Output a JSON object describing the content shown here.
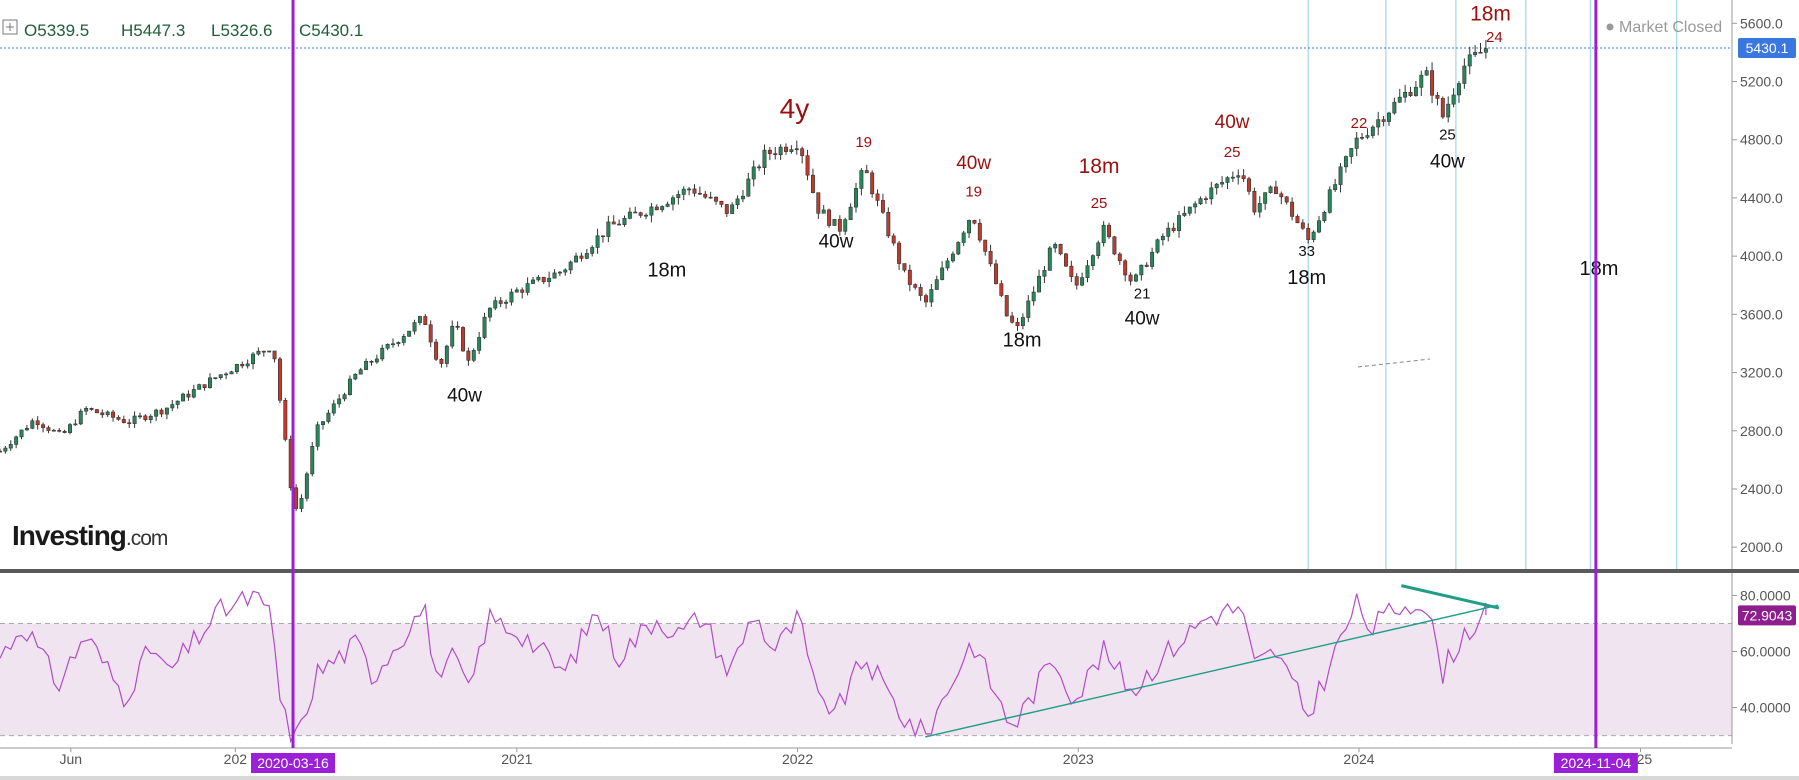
{
  "header": {
    "open_label": "O",
    "open": "5339.5",
    "high_label": "H",
    "high": "5447.3",
    "low_label": "L",
    "low": "5326.6",
    "close_label": "C",
    "close": "5430.1",
    "market_status": "Market Closed"
  },
  "branding": {
    "logo_main": "Investing",
    "logo_suffix": ".com"
  },
  "colors": {
    "up": "#26875a",
    "down": "#c0392b",
    "cycle_major": "#9b1fd6",
    "cycle_minor": "#a9d7e8",
    "rsi_line": "#b24bc7",
    "rsi_band": "#f1e4f1",
    "trendline": "#1e9e86",
    "price_badge": "#3a78e0",
    "rsi_badge": "#8e1e8e",
    "annotation_red": "#9b0f0f"
  },
  "chart_data": [
    {
      "type": "candlestick",
      "title": "",
      "y_axis": {
        "range": [
          1850,
          5760
        ],
        "ticks": [
          "2000.0",
          "2400.0",
          "2800.0",
          "3200.0",
          "3600.0",
          "4000.0",
          "4400.0",
          "4800.0",
          "5200.0",
          "5600.0"
        ],
        "last_price_label": "5430.1"
      },
      "x_axis": {
        "range": [
          "2019-03-01",
          "2025-04-30"
        ],
        "labels": [
          {
            "date": "2019-06-01",
            "text": "Jun"
          },
          {
            "date": "2020-01-01",
            "text": "202"
          },
          {
            "date": "2021-01-01",
            "text": "2021"
          },
          {
            "date": "2022-01-01",
            "text": "2022"
          },
          {
            "date": "2023-01-01",
            "text": "2023"
          },
          {
            "date": "2024-01-01",
            "text": "2024"
          },
          {
            "date": "2025-01-01",
            "text": "025"
          }
        ],
        "highlighted_dates": [
          {
            "date": "2020-03-16",
            "text": "2020-03-16"
          },
          {
            "date": "2024-11-04",
            "text": "2024-11-04"
          }
        ]
      },
      "price_path": [
        [
          "2019-03-01",
          2660
        ],
        [
          "2019-04-15",
          2880
        ],
        [
          "2019-05-20",
          2760
        ],
        [
          "2019-06-20",
          2950
        ],
        [
          "2019-08-15",
          2860
        ],
        [
          "2019-10-01",
          2950
        ],
        [
          "2019-12-01",
          3150
        ],
        [
          "2020-02-19",
          3390
        ],
        [
          "2020-03-16",
          2300
        ],
        [
          "2020-03-23",
          2240
        ],
        [
          "2020-04-15",
          2800
        ],
        [
          "2020-06-08",
          3200
        ],
        [
          "2020-09-02",
          3580
        ],
        [
          "2020-09-23",
          3240
        ],
        [
          "2020-10-12",
          3540
        ],
        [
          "2020-10-30",
          3270
        ],
        [
          "2020-11-25",
          3630
        ],
        [
          "2021-01-01",
          3760
        ],
        [
          "2021-03-01",
          3900
        ],
        [
          "2021-05-01",
          4200
        ],
        [
          "2021-07-01",
          4350
        ],
        [
          "2021-08-15",
          4470
        ],
        [
          "2021-10-04",
          4300
        ],
        [
          "2021-11-20",
          4700
        ],
        [
          "2022-01-03",
          4790
        ],
        [
          "2022-01-27",
          4330
        ],
        [
          "2022-02-24",
          4180
        ],
        [
          "2022-03-29",
          4600
        ],
        [
          "2022-05-20",
          3870
        ],
        [
          "2022-06-16",
          3670
        ],
        [
          "2022-08-16",
          4300
        ],
        [
          "2022-09-30",
          3590
        ],
        [
          "2022-10-13",
          3490
        ],
        [
          "2022-11-30",
          4080
        ],
        [
          "2022-12-28",
          3780
        ],
        [
          "2023-02-02",
          4190
        ],
        [
          "2023-03-13",
          3810
        ],
        [
          "2023-04-20",
          4130
        ],
        [
          "2023-06-15",
          4420
        ],
        [
          "2023-07-31",
          4600
        ],
        [
          "2023-08-18",
          4330
        ],
        [
          "2023-09-15",
          4470
        ],
        [
          "2023-10-27",
          4110
        ],
        [
          "2023-12-28",
          4790
        ],
        [
          "2024-03-28",
          5250
        ],
        [
          "2024-04-19",
          4960
        ],
        [
          "2024-05-15",
          5300
        ],
        [
          "2024-06-14",
          5430
        ]
      ],
      "cycle_lines": [
        {
          "date": "2020-03-16",
          "kind": "major"
        },
        {
          "date": "2024-11-04",
          "kind": "major"
        },
        {
          "date": "2023-10-27",
          "kind": "minor"
        },
        {
          "date": "2024-02-05",
          "kind": "minor"
        },
        {
          "date": "2024-05-06",
          "kind": "minor"
        },
        {
          "date": "2024-08-05",
          "kind": "minor"
        },
        {
          "date": "2024-10-28",
          "kind": "minor"
        },
        {
          "date": "2025-02-17",
          "kind": "minor"
        }
      ],
      "annotations": [
        {
          "text": "4y",
          "date": "2021-12-28",
          "price": 4950,
          "color": "red",
          "size": 28
        },
        {
          "text": "19",
          "date": "2022-03-28",
          "price": 4750,
          "color": "red",
          "size": 15
        },
        {
          "text": "40w",
          "date": "2022-08-18",
          "price": 4600,
          "color": "red",
          "size": 19
        },
        {
          "text": "19",
          "date": "2022-08-18",
          "price": 4410,
          "color": "red",
          "size": 15
        },
        {
          "text": "18m",
          "date": "2023-01-28",
          "price": 4570,
          "color": "red",
          "size": 21
        },
        {
          "text": "25",
          "date": "2023-01-28",
          "price": 4330,
          "color": "red",
          "size": 15
        },
        {
          "text": "40w",
          "date": "2023-07-20",
          "price": 4880,
          "color": "red",
          "size": 19
        },
        {
          "text": "25",
          "date": "2023-07-20",
          "price": 4680,
          "color": "red",
          "size": 15
        },
        {
          "text": "22",
          "date": "2024-01-01",
          "price": 4880,
          "color": "red",
          "size": 15
        },
        {
          "text": "18m",
          "date": "2024-06-20",
          "price": 5620,
          "color": "red",
          "size": 21
        },
        {
          "text": "24",
          "date": "2024-06-25",
          "price": 5470,
          "color": "red",
          "size": 15
        },
        {
          "text": "40w",
          "date": "2020-10-25",
          "price": 3000,
          "color": "black",
          "size": 19
        },
        {
          "text": "18m",
          "date": "2021-07-15",
          "price": 3860,
          "color": "black",
          "size": 20
        },
        {
          "text": "40w",
          "date": "2022-02-20",
          "price": 4060,
          "color": "black",
          "size": 19
        },
        {
          "text": "18m",
          "date": "2022-10-20",
          "price": 3380,
          "color": "black",
          "size": 20
        },
        {
          "text": "21",
          "date": "2023-03-25",
          "price": 3710,
          "color": "black",
          "size": 15
        },
        {
          "text": "40w",
          "date": "2023-03-25",
          "price": 3530,
          "color": "black",
          "size": 19
        },
        {
          "text": "33",
          "date": "2023-10-25",
          "price": 4000,
          "color": "black",
          "size": 15
        },
        {
          "text": "18m",
          "date": "2023-10-25",
          "price": 3810,
          "color": "black",
          "size": 20
        },
        {
          "text": "25",
          "date": "2024-04-25",
          "price": 4800,
          "color": "black",
          "size": 15
        },
        {
          "text": "40w",
          "date": "2024-04-25",
          "price": 4610,
          "color": "black",
          "size": 19
        },
        {
          "text": "18m",
          "date": "2024-11-08",
          "price": 3870,
          "color": "black",
          "size": 20
        }
      ]
    },
    {
      "type": "line",
      "title": "",
      "y_axis": {
        "range": [
          27,
          88
        ],
        "ticks": [
          "40.0000",
          "60.0000",
          "80.0000"
        ],
        "band": [
          30,
          70
        ],
        "last_value_label": "72.9043"
      },
      "rsi_path": [
        [
          "2019-03-01",
          58
        ],
        [
          "2019-04-01",
          70
        ],
        [
          "2019-05-15",
          48
        ],
        [
          "2019-06-20",
          66
        ],
        [
          "2019-08-10",
          44
        ],
        [
          "2019-09-15",
          62
        ],
        [
          "2019-10-05",
          52
        ],
        [
          "2019-12-10",
          74
        ],
        [
          "2020-01-28",
          80
        ],
        [
          "2020-02-08",
          73
        ],
        [
          "2020-02-18",
          76
        ],
        [
          "2020-02-25",
          45
        ],
        [
          "2020-03-10",
          32
        ],
        [
          "2020-03-23",
          29
        ],
        [
          "2020-04-15",
          52
        ],
        [
          "2020-06-08",
          63
        ],
        [
          "2020-06-26",
          51
        ],
        [
          "2020-09-02",
          76
        ],
        [
          "2020-09-23",
          46
        ],
        [
          "2020-10-12",
          60
        ],
        [
          "2020-10-30",
          45
        ],
        [
          "2020-11-25",
          72
        ],
        [
          "2021-01-10",
          66
        ],
        [
          "2021-03-04",
          52
        ],
        [
          "2021-04-15",
          75
        ],
        [
          "2021-05-12",
          58
        ],
        [
          "2021-07-01",
          72
        ],
        [
          "2021-08-01",
          66
        ],
        [
          "2021-08-30",
          73
        ],
        [
          "2021-10-04",
          52
        ],
        [
          "2021-11-05",
          74
        ],
        [
          "2021-12-01",
          60
        ],
        [
          "2022-01-03",
          72
        ],
        [
          "2022-01-27",
          42
        ],
        [
          "2022-02-24",
          40
        ],
        [
          "2022-03-29",
          58
        ],
        [
          "2022-05-20",
          36
        ],
        [
          "2022-06-16",
          30
        ],
        [
          "2022-08-16",
          64
        ],
        [
          "2022-09-30",
          36
        ],
        [
          "2022-10-13",
          35
        ],
        [
          "2022-11-30",
          58
        ],
        [
          "2022-12-28",
          43
        ],
        [
          "2023-02-02",
          60
        ],
        [
          "2023-03-13",
          46
        ],
        [
          "2023-04-20",
          58
        ],
        [
          "2023-06-15",
          72
        ],
        [
          "2023-07-31",
          76
        ],
        [
          "2023-08-18",
          55
        ],
        [
          "2023-09-15",
          60
        ],
        [
          "2023-10-27",
          37
        ],
        [
          "2023-12-28",
          77
        ],
        [
          "2024-01-17",
          68
        ],
        [
          "2024-02-15",
          75
        ],
        [
          "2024-03-20",
          79
        ],
        [
          "2024-04-01",
          72
        ],
        [
          "2024-04-19",
          53
        ],
        [
          "2024-05-15",
          66
        ],
        [
          "2024-06-14",
          72.9
        ]
      ],
      "trendlines": [
        {
          "from": [
            "2022-06-16",
            29.5
          ],
          "to": [
            "2024-06-30",
            76.5
          ],
          "weight": 1.4
        },
        {
          "from": [
            "2024-02-25",
            83.5
          ],
          "to": [
            "2024-07-01",
            75.5
          ],
          "weight": 3
        }
      ]
    }
  ]
}
